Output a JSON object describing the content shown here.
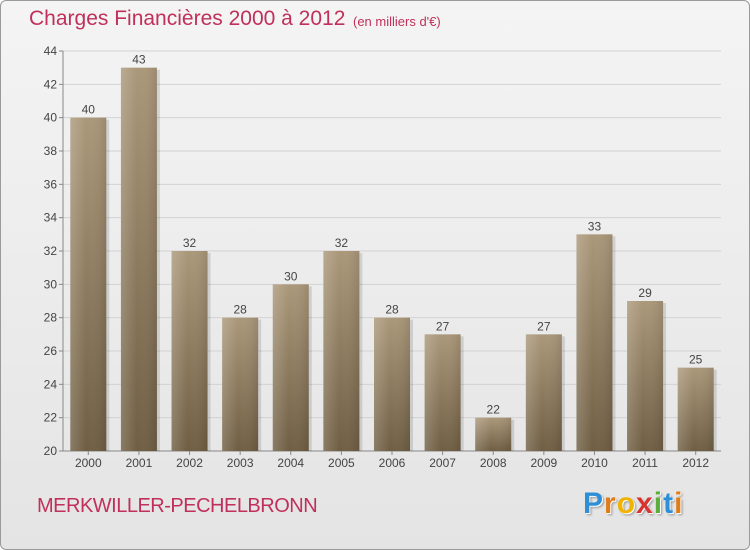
{
  "header": {
    "title": "Charges Financières 2000 à 2012",
    "subtitle": "(en milliers d'€)"
  },
  "footer": {
    "commune": "MERKWILLER-PECHELBRONN",
    "logo_letters": [
      "P",
      "r",
      "o",
      "x",
      "i",
      "t",
      "i"
    ],
    "logo_colors": [
      "#2f8fd6",
      "#e07b1a",
      "#f0b400",
      "#d9332f",
      "#5cae3a",
      "#2f8fd6",
      "#e07b1a"
    ]
  },
  "colors": {
    "bar_light": "#ab987a",
    "bar_dark": "#6f5e43",
    "text": "#444444",
    "brand": "#c0305a"
  },
  "chart_data": {
    "type": "bar",
    "categories": [
      "2000",
      "2001",
      "2002",
      "2003",
      "2004",
      "2005",
      "2006",
      "2007",
      "2008",
      "2009",
      "2010",
      "2011",
      "2012"
    ],
    "values": [
      40,
      43,
      32,
      28,
      30,
      32,
      28,
      27,
      22,
      27,
      33,
      29,
      25
    ],
    "data_labels": [
      "40",
      "43",
      "32",
      "28",
      "30",
      "32",
      "28",
      "27",
      "22",
      "27",
      "33",
      "29",
      "25"
    ],
    "ylim": [
      20,
      44
    ],
    "yticks": [
      20,
      22,
      24,
      26,
      28,
      30,
      32,
      34,
      36,
      38,
      40,
      42,
      44
    ],
    "ytick_labels": [
      "20",
      "22",
      "24",
      "26",
      "28",
      "30",
      "32",
      "34",
      "36",
      "38",
      "40",
      "42",
      "44"
    ],
    "grid": true
  }
}
